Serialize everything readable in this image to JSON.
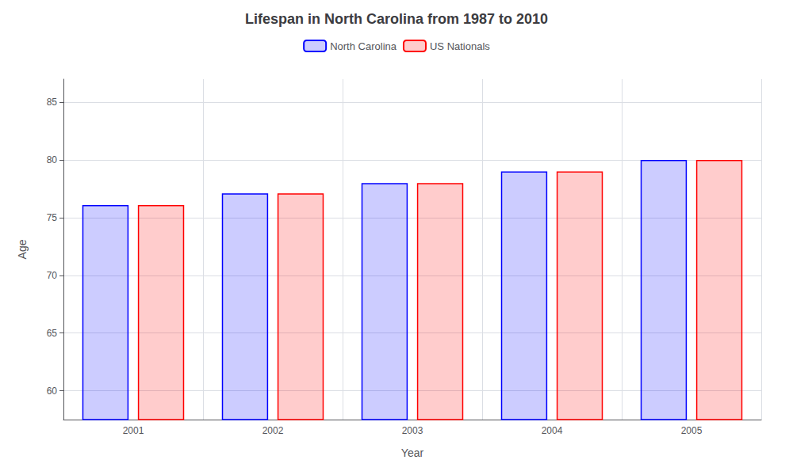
{
  "chart_data": {
    "type": "bar",
    "title": "Lifespan in North Carolina from 1987 to 2010",
    "xlabel": "Year",
    "ylabel": "Age",
    "categories": [
      "2001",
      "2002",
      "2003",
      "2004",
      "2005"
    ],
    "series": [
      {
        "name": "North Carolina",
        "color": "#0000ff",
        "values": [
          76.1,
          77.1,
          78.0,
          79.0,
          80.0
        ]
      },
      {
        "name": "US Nationals",
        "color": "#ff0000",
        "values": [
          76.1,
          77.1,
          78.0,
          79.0,
          80.0
        ]
      }
    ],
    "ylim": [
      57.5,
      87
    ],
    "yticks": [
      60,
      65,
      70,
      75,
      80,
      85
    ],
    "grid": true,
    "legend": "top"
  }
}
